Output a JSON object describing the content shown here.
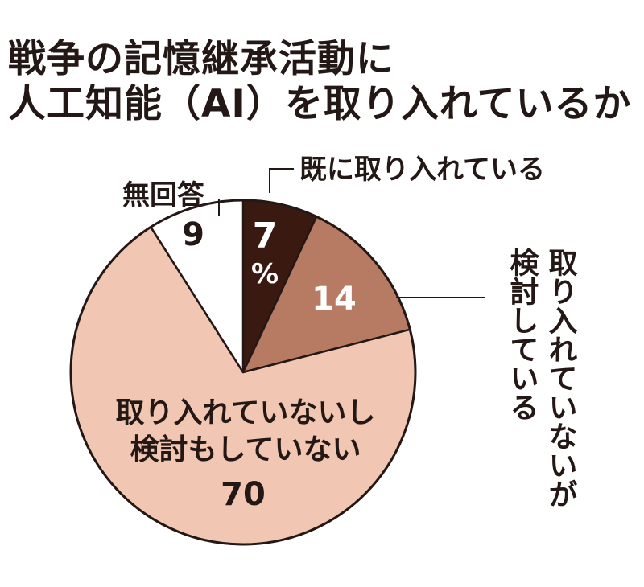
{
  "title_lines": [
    "戦争の記憶継承活動に",
    "人工知能（AI）を取り入れているか"
  ],
  "chart_data": {
    "type": "pie",
    "unit": "%",
    "categories": [
      "既に取り入れている",
      "取り入れていないが検討している",
      "取り入れていないし検討もしていない",
      "無回答"
    ],
    "values": [
      7,
      14,
      70,
      9
    ],
    "colors": [
      "#3a1a10",
      "#b77a62",
      "#f1c6b2",
      "#ffffff"
    ],
    "category_label_lines": [
      [
        "既に取り入れている"
      ],
      [
        "取り入れていないが",
        "検討している"
      ],
      [
        "取り入れていないし",
        "検討もしていない"
      ],
      [
        "無回答"
      ]
    ],
    "start_angle_deg": 0,
    "direction": "clockwise"
  }
}
